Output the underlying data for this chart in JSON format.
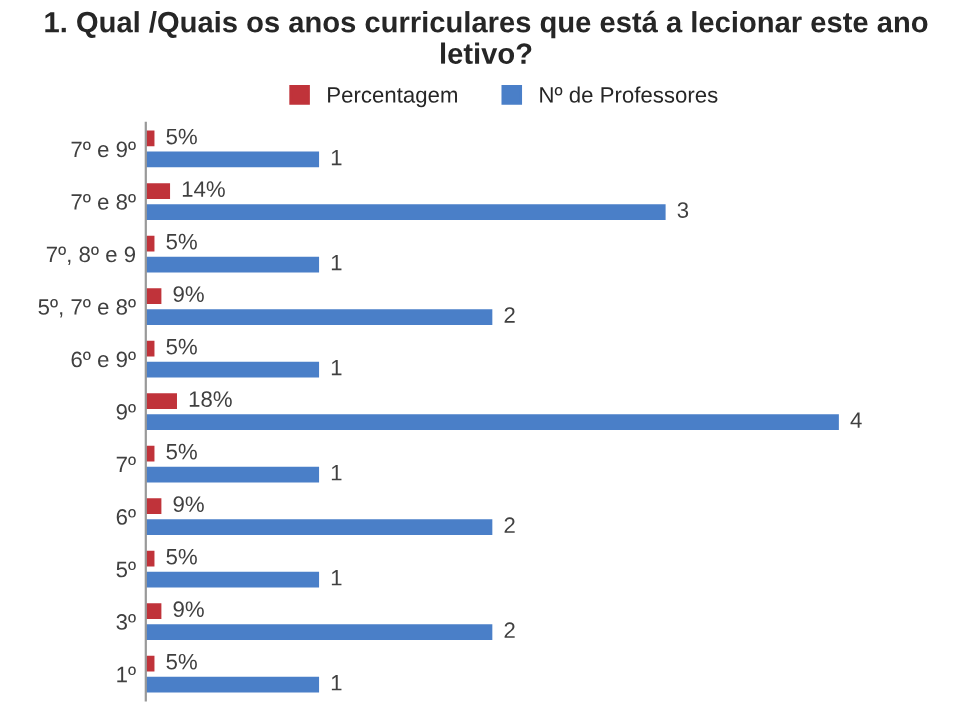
{
  "chart_data": {
    "type": "bar",
    "orientation": "horizontal",
    "title": "1. Qual /Quais os anos curriculares que está a lecionar este ano letivo?",
    "categories": [
      "7º e 9º",
      "7º e 8º",
      "7º, 8º e 9",
      "5º, 7º e 8º",
      "6º e 9º",
      "9º",
      "7º",
      "6º",
      "5º",
      "3º",
      "1º"
    ],
    "series": [
      {
        "name": "Percentagem",
        "color": "#c0333a",
        "values": [
          0.05,
          0.14,
          0.05,
          0.09,
          0.05,
          0.18,
          0.05,
          0.09,
          0.05,
          0.09,
          0.05
        ],
        "value_labels": [
          "5%",
          "14%",
          "5%",
          "9%",
          "5%",
          "18%",
          "5%",
          "9%",
          "5%",
          "9%",
          "5%"
        ]
      },
      {
        "name": "Nº de Professores",
        "color": "#4a7fc8",
        "values": [
          1,
          3,
          1,
          2,
          1,
          4,
          1,
          2,
          1,
          2,
          1
        ],
        "value_labels": [
          "1",
          "3",
          "1",
          "2",
          "1",
          "4",
          "1",
          "2",
          "1",
          "2",
          "1"
        ]
      }
    ],
    "legend": "top",
    "grid": false
  }
}
